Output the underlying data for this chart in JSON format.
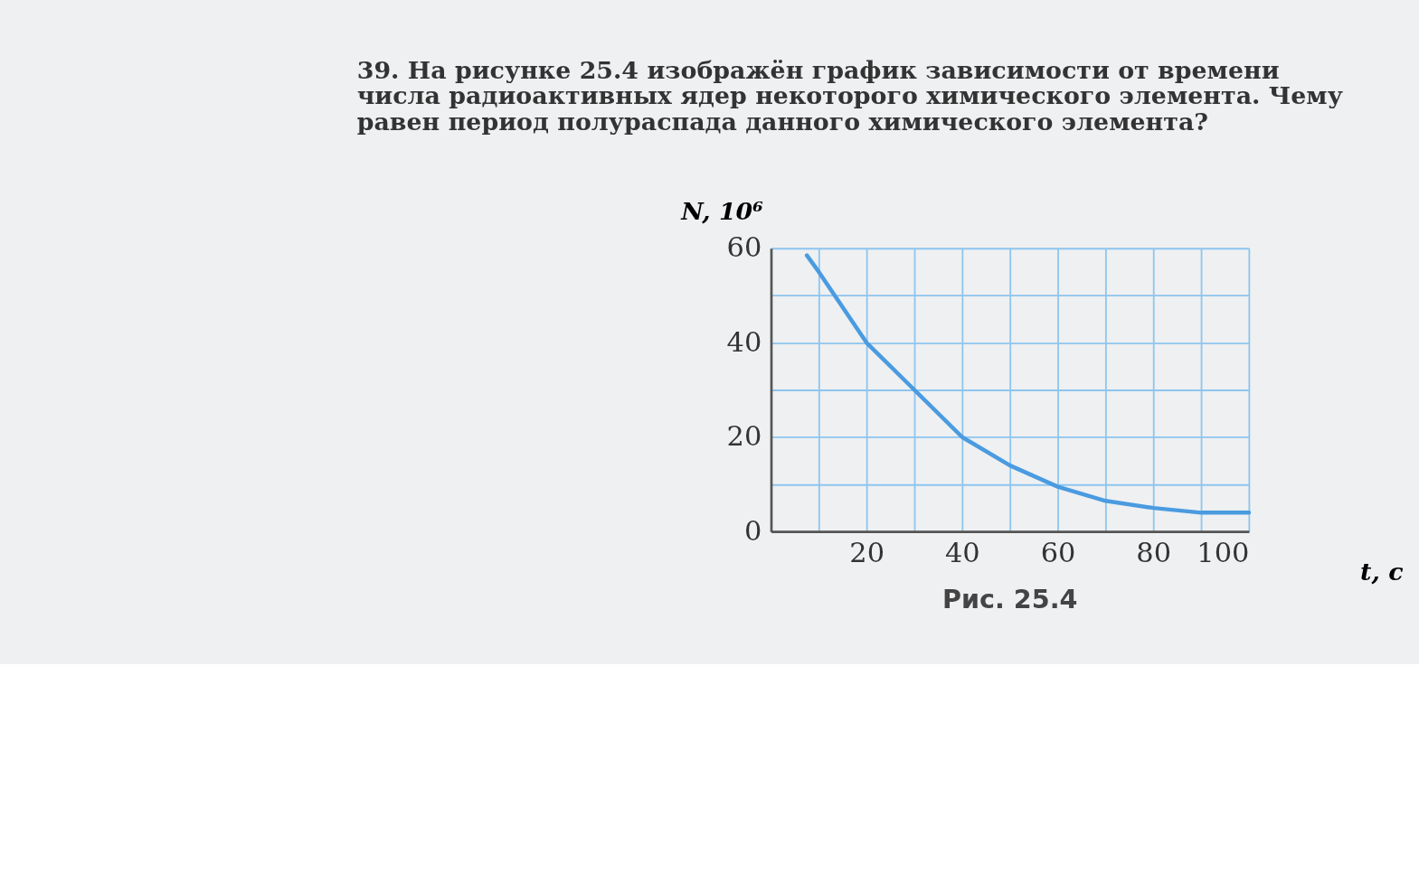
{
  "chart_data": {
    "type": "line",
    "title": "39. На рисунке 25.4 изображён график зависимости от времени числа радиоактивных ядер некоторого химического элемента. Чему равен период полураспада данного химического элемента?",
    "xlabel": "t, c",
    "ylabel": "N, 10⁶",
    "annotations": [
      "Рис. 25.4"
    ],
    "x": [
      7.5,
      10,
      20,
      30,
      40,
      50,
      60,
      70,
      80,
      90,
      100
    ],
    "series": [
      {
        "color": "#4a9be0",
        "values": [
          58.5,
          55,
          40,
          30,
          20,
          14,
          9.5,
          6.5,
          5,
          4,
          4
        ]
      }
    ],
    "xlim": [
      0,
      100
    ],
    "ylim": [
      0,
      60
    ],
    "xticks": [
      {
        "value": 0,
        "label": null
      },
      {
        "value": 10,
        "label": null
      },
      20,
      {
        "value": 30,
        "label": null
      },
      40,
      {
        "value": 50,
        "label": null
      },
      60,
      {
        "value": 70,
        "label": null
      },
      80,
      {
        "value": 90,
        "label": null
      },
      100
    ],
    "yticks": [
      0,
      {
        "value": 10,
        "label": null
      },
      20,
      {
        "value": 30,
        "label": null
      },
      40,
      {
        "value": 50,
        "label": null
      },
      60
    ],
    "grid": true,
    "marker": "none",
    "line_style": "solid"
  }
}
